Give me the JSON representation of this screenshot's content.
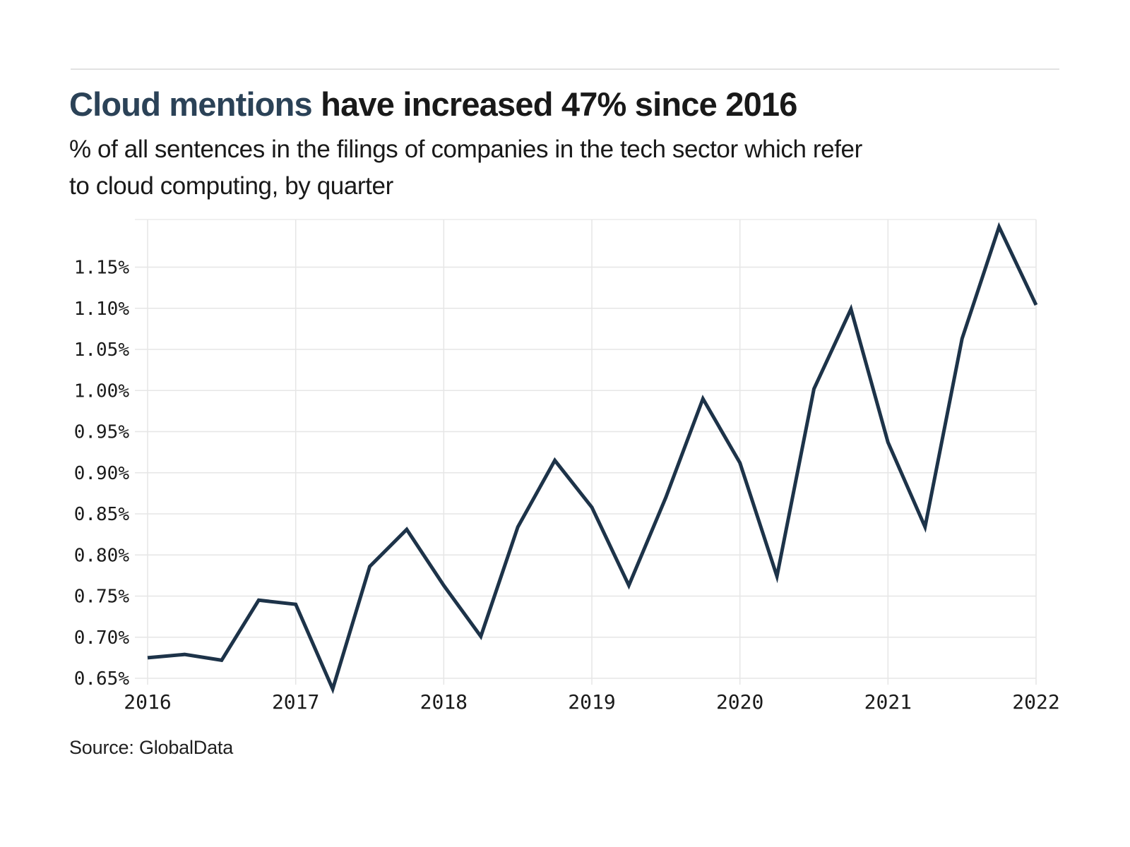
{
  "page": {
    "title_highlight": "Cloud mentions",
    "title_rest": " have increased 47% since 2016",
    "subtitle_lines": [
      "% of all sentences in the filings of companies in the tech sector which refer",
      "to cloud computing, by quarter"
    ],
    "source": "Source: GlobalData"
  },
  "colors": {
    "title_accent": "#2b4257",
    "text": "#191919",
    "line": "#1d3349",
    "grid": "#e6e6e6",
    "plot_border": "#ececec"
  },
  "chart_data": {
    "type": "line",
    "title": "Cloud mentions have increased 47% since 2016",
    "subtitle": "% of all sentences in the filings of companies in the tech sector which refer to cloud computing, by quarter",
    "source": "Source: GlobalData",
    "unit": "%",
    "x": [
      "2016 Q1",
      "2016 Q2",
      "2016 Q3",
      "2016 Q4",
      "2017 Q1",
      "2017 Q2",
      "2017 Q3",
      "2017 Q4",
      "2018 Q1",
      "2018 Q2",
      "2018 Q3",
      "2018 Q4",
      "2019 Q1",
      "2019 Q2",
      "2019 Q3",
      "2019 Q4",
      "2020 Q1",
      "2020 Q2",
      "2020 Q3",
      "2020 Q4",
      "2021 Q1",
      "2021 Q2",
      "2021 Q3",
      "2021 Q4",
      "2022 Q1"
    ],
    "values": [
      0.675,
      0.679,
      0.672,
      0.745,
      0.74,
      0.637,
      0.786,
      0.831,
      0.763,
      0.701,
      0.834,
      0.915,
      0.858,
      0.763,
      0.87,
      0.99,
      0.912,
      0.774,
      1.002,
      1.099,
      0.937,
      0.834,
      1.063,
      1.199,
      1.104
    ],
    "x_tick_labels": [
      "2016",
      "2017",
      "2018",
      "2019",
      "2020",
      "2021",
      "2022"
    ],
    "y_tick_values": [
      0.65,
      0.7,
      0.75,
      0.8,
      0.85,
      0.9,
      0.95,
      1.0,
      1.05,
      1.1,
      1.15
    ],
    "y_tick_labels": [
      "0.65%",
      "0.70%",
      "0.75%",
      "0.80%",
      "0.85%",
      "0.90%",
      "0.95%",
      "1.00%",
      "1.05%",
      "1.10%",
      "1.15%"
    ],
    "ylim": [
      0.631,
      1.209
    ],
    "grid": true,
    "legend": false,
    "line_color": "#1d3349"
  }
}
